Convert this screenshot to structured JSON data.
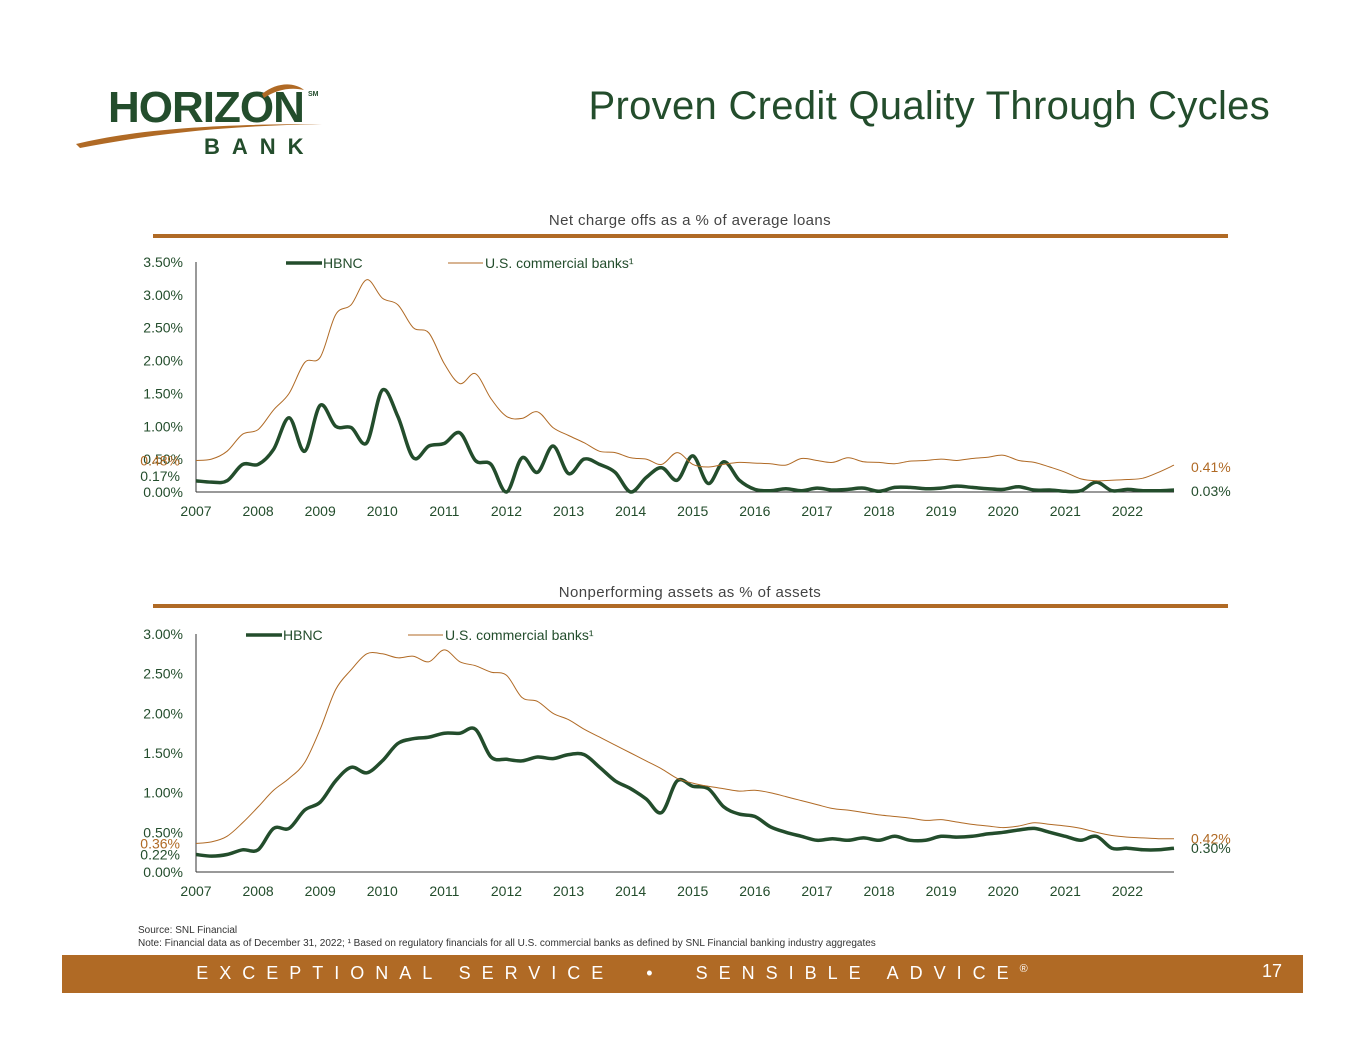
{
  "brand": {
    "logo_top": "HORIZON",
    "logo_bottom": "BANK",
    "logo_mark": "SM",
    "green": "#234d2c",
    "orange": "#b06a25"
  },
  "page": {
    "title": "Proven Credit Quality Through Cycles",
    "source": "Source: SNL Financial",
    "note": "Note: Financial data as of December 31, 2022; ¹ Based on regulatory financials for all U.S. commercial banks as defined by SNL Financial banking industry aggregates",
    "slogan": "EXCEPTIONAL SERVICE  •  SENSIBLE ADVICE",
    "registered": "®",
    "page_number": "17"
  },
  "chart_data": [
    {
      "type": "line",
      "title": "Net charge offs as a % of average loans",
      "y_ticks": [
        "0.00%",
        "0.50%",
        "1.00%",
        "1.50%",
        "2.00%",
        "2.50%",
        "3.00%",
        "3.50%"
      ],
      "ylim": [
        0,
        3.5
      ],
      "x_ticks": [
        "2007",
        "2008",
        "2009",
        "2010",
        "2011",
        "2012",
        "2013",
        "2014",
        "2015",
        "2016",
        "2017",
        "2018",
        "2019",
        "2020",
        "2021",
        "2022"
      ],
      "x_range": [
        2007.0,
        2022.75
      ],
      "legend_position": "top-left",
      "series": [
        {
          "name": "HBNC",
          "color": "#234d2c",
          "x": [
            2007.0,
            2007.25,
            2007.5,
            2007.75,
            2008.0,
            2008.25,
            2008.5,
            2008.75,
            2009.0,
            2009.25,
            2009.5,
            2009.75,
            2010.0,
            2010.25,
            2010.5,
            2010.75,
            2011.0,
            2011.25,
            2011.5,
            2011.75,
            2012.0,
            2012.25,
            2012.5,
            2012.75,
            2013.0,
            2013.25,
            2013.5,
            2013.75,
            2014.0,
            2014.25,
            2014.5,
            2014.75,
            2015.0,
            2015.25,
            2015.5,
            2015.75,
            2016.0,
            2016.25,
            2016.5,
            2016.75,
            2017.0,
            2017.25,
            2017.5,
            2017.75,
            2018.0,
            2018.25,
            2018.5,
            2018.75,
            2019.0,
            2019.25,
            2019.5,
            2019.75,
            2020.0,
            2020.25,
            2020.5,
            2020.75,
            2021.0,
            2021.25,
            2021.5,
            2021.75,
            2022.0,
            2022.25,
            2022.5,
            2022.75
          ],
          "values": [
            0.17,
            0.15,
            0.17,
            0.42,
            0.42,
            0.65,
            1.13,
            0.62,
            1.32,
            1.0,
            0.98,
            0.75,
            1.55,
            1.15,
            0.52,
            0.7,
            0.74,
            0.9,
            0.48,
            0.42,
            0.0,
            0.52,
            0.3,
            0.7,
            0.28,
            0.5,
            0.42,
            0.3,
            0.0,
            0.22,
            0.37,
            0.18,
            0.55,
            0.13,
            0.46,
            0.18,
            0.04,
            0.02,
            0.05,
            0.02,
            0.06,
            0.03,
            0.04,
            0.06,
            0.01,
            0.07,
            0.07,
            0.05,
            0.06,
            0.09,
            0.07,
            0.05,
            0.04,
            0.08,
            0.03,
            0.03,
            0.01,
            0.02,
            0.15,
            0.02,
            0.04,
            0.02,
            0.02,
            0.03
          ],
          "end_label": "0.03%",
          "start_label": "0.17%"
        },
        {
          "name": "U.S. commercial banks¹",
          "color": "#b06a25",
          "x": [
            2007.0,
            2007.25,
            2007.5,
            2007.75,
            2008.0,
            2008.25,
            2008.5,
            2008.75,
            2009.0,
            2009.25,
            2009.5,
            2009.75,
            2010.0,
            2010.25,
            2010.5,
            2010.75,
            2011.0,
            2011.25,
            2011.5,
            2011.75,
            2012.0,
            2012.25,
            2012.5,
            2012.75,
            2013.0,
            2013.25,
            2013.5,
            2013.75,
            2014.0,
            2014.25,
            2014.5,
            2014.75,
            2015.0,
            2015.25,
            2015.5,
            2015.75,
            2016.0,
            2016.25,
            2016.5,
            2016.75,
            2017.0,
            2017.25,
            2017.5,
            2017.75,
            2018.0,
            2018.25,
            2018.5,
            2018.75,
            2019.0,
            2019.25,
            2019.5,
            2019.75,
            2020.0,
            2020.25,
            2020.5,
            2020.75,
            2021.0,
            2021.25,
            2021.5,
            2021.75,
            2022.0,
            2022.25,
            2022.5,
            2022.75
          ],
          "values": [
            0.48,
            0.5,
            0.62,
            0.88,
            0.95,
            1.25,
            1.5,
            1.97,
            2.05,
            2.7,
            2.85,
            3.23,
            2.95,
            2.85,
            2.5,
            2.42,
            1.95,
            1.65,
            1.8,
            1.42,
            1.15,
            1.12,
            1.22,
            0.98,
            0.86,
            0.75,
            0.62,
            0.6,
            0.52,
            0.5,
            0.42,
            0.6,
            0.42,
            0.38,
            0.42,
            0.45,
            0.44,
            0.43,
            0.41,
            0.51,
            0.48,
            0.45,
            0.52,
            0.46,
            0.45,
            0.43,
            0.47,
            0.48,
            0.5,
            0.48,
            0.51,
            0.53,
            0.56,
            0.48,
            0.45,
            0.38,
            0.3,
            0.2,
            0.17,
            0.18,
            0.19,
            0.21,
            0.3,
            0.41
          ],
          "end_label": "0.41%",
          "start_label": "0.48%"
        }
      ]
    },
    {
      "type": "line",
      "title": "Nonperforming assets as % of assets",
      "y_ticks": [
        "0.00%",
        "0.50%",
        "1.00%",
        "1.50%",
        "2.00%",
        "2.50%",
        "3.00%"
      ],
      "ylim": [
        0,
        3.0
      ],
      "x_ticks": [
        "2007",
        "2008",
        "2009",
        "2010",
        "2011",
        "2012",
        "2013",
        "2014",
        "2015",
        "2016",
        "2017",
        "2018",
        "2019",
        "2020",
        "2021",
        "2022"
      ],
      "x_range": [
        2007.0,
        2022.75
      ],
      "legend_position": "top-left",
      "series": [
        {
          "name": "HBNC",
          "color": "#234d2c",
          "x": [
            2007.0,
            2007.25,
            2007.5,
            2007.75,
            2008.0,
            2008.25,
            2008.5,
            2008.75,
            2009.0,
            2009.25,
            2009.5,
            2009.75,
            2010.0,
            2010.25,
            2010.5,
            2010.75,
            2011.0,
            2011.25,
            2011.5,
            2011.75,
            2012.0,
            2012.25,
            2012.5,
            2012.75,
            2013.0,
            2013.25,
            2013.5,
            2013.75,
            2014.0,
            2014.25,
            2014.5,
            2014.75,
            2015.0,
            2015.25,
            2015.5,
            2015.75,
            2016.0,
            2016.25,
            2016.5,
            2016.75,
            2017.0,
            2017.25,
            2017.5,
            2017.75,
            2018.0,
            2018.25,
            2018.5,
            2018.75,
            2019.0,
            2019.25,
            2019.5,
            2019.75,
            2020.0,
            2020.25,
            2020.5,
            2020.75,
            2021.0,
            2021.25,
            2021.5,
            2021.75,
            2022.0,
            2022.25,
            2022.5,
            2022.75
          ],
          "values": [
            0.22,
            0.2,
            0.22,
            0.28,
            0.28,
            0.55,
            0.55,
            0.78,
            0.88,
            1.15,
            1.32,
            1.25,
            1.4,
            1.62,
            1.68,
            1.7,
            1.75,
            1.75,
            1.8,
            1.45,
            1.42,
            1.4,
            1.45,
            1.43,
            1.48,
            1.48,
            1.32,
            1.15,
            1.05,
            0.92,
            0.75,
            1.15,
            1.08,
            1.05,
            0.82,
            0.73,
            0.7,
            0.57,
            0.5,
            0.45,
            0.4,
            0.42,
            0.4,
            0.43,
            0.4,
            0.45,
            0.4,
            0.4,
            0.45,
            0.44,
            0.45,
            0.48,
            0.5,
            0.53,
            0.55,
            0.5,
            0.45,
            0.4,
            0.45,
            0.3,
            0.3,
            0.28,
            0.28,
            0.3
          ],
          "end_label": "0.30%",
          "start_label": "0.22%"
        },
        {
          "name": "U.S. commercial banks¹",
          "color": "#b06a25",
          "x": [
            2007.0,
            2007.25,
            2007.5,
            2007.75,
            2008.0,
            2008.25,
            2008.5,
            2008.75,
            2009.0,
            2009.25,
            2009.5,
            2009.75,
            2010.0,
            2010.25,
            2010.5,
            2010.75,
            2011.0,
            2011.25,
            2011.5,
            2011.75,
            2012.0,
            2012.25,
            2012.5,
            2012.75,
            2013.0,
            2013.25,
            2013.5,
            2013.75,
            2014.0,
            2014.25,
            2014.5,
            2014.75,
            2015.0,
            2015.25,
            2015.5,
            2015.75,
            2016.0,
            2016.25,
            2016.5,
            2016.75,
            2017.0,
            2017.25,
            2017.5,
            2017.75,
            2018.0,
            2018.25,
            2018.5,
            2018.75,
            2019.0,
            2019.25,
            2019.5,
            2019.75,
            2020.0,
            2020.25,
            2020.5,
            2020.75,
            2021.0,
            2021.25,
            2021.5,
            2021.75,
            2022.0,
            2022.25,
            2022.5,
            2022.75
          ],
          "values": [
            0.36,
            0.38,
            0.45,
            0.62,
            0.82,
            1.03,
            1.18,
            1.38,
            1.8,
            2.3,
            2.55,
            2.75,
            2.75,
            2.7,
            2.72,
            2.65,
            2.8,
            2.65,
            2.6,
            2.52,
            2.48,
            2.2,
            2.15,
            2.0,
            1.92,
            1.8,
            1.7,
            1.6,
            1.5,
            1.4,
            1.3,
            1.18,
            1.12,
            1.08,
            1.05,
            1.02,
            1.03,
            1.0,
            0.95,
            0.9,
            0.85,
            0.8,
            0.78,
            0.75,
            0.72,
            0.7,
            0.68,
            0.65,
            0.66,
            0.63,
            0.6,
            0.58,
            0.56,
            0.58,
            0.62,
            0.6,
            0.58,
            0.55,
            0.5,
            0.46,
            0.44,
            0.43,
            0.42,
            0.42
          ],
          "end_label": "0.42%",
          "start_label": "0.36%"
        }
      ]
    }
  ]
}
